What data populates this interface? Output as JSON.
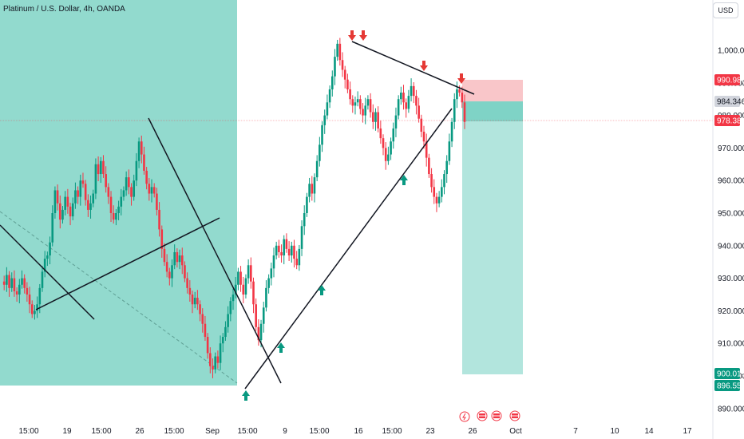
{
  "header": {
    "title": "Platinum / U.S. Dollar, 4h, OANDA",
    "currency": "USD"
  },
  "colors": {
    "up": "#089981",
    "down": "#f23645",
    "zone": "#7fd3c6",
    "tp_zone": "#b2e5dd",
    "sl_zone": "#f9c6c9",
    "entry_zone": "#7fd3c6",
    "arrow_down": "#e53935",
    "arrow_up": "#089981"
  },
  "chart_data": {
    "type": "candlestick",
    "y_axis": {
      "ticks": [
        "1,000.000",
        "990.000",
        "980.000",
        "970.000",
        "960.000",
        "950.000",
        "940.000",
        "930.000",
        "920.000",
        "910.000",
        "900.000",
        "890.000"
      ],
      "ylim": [
        887,
        1010
      ]
    },
    "x_axis": {
      "ticks": [
        "15:00",
        "19",
        "15:00",
        "26",
        "15:00",
        "Sep",
        "15:00",
        "9",
        "15:00",
        "16",
        "15:00",
        "23",
        "26",
        "Oct",
        "7",
        "10",
        "14",
        "17"
      ]
    },
    "price_tags": [
      {
        "value": "990.983",
        "kind": "stop"
      },
      {
        "value": "984.346",
        "kind": "entry"
      },
      {
        "value": "978.388",
        "kind": "last"
      },
      {
        "value": "900.018",
        "kind": "target"
      },
      {
        "value": "896.553",
        "kind": "target2"
      }
    ],
    "prices": [
      929,
      928,
      931,
      927,
      930,
      926,
      925,
      928,
      930,
      927,
      925,
      922,
      919,
      920,
      922,
      927,
      932,
      936,
      937,
      941,
      950,
      957,
      953,
      948,
      951,
      955,
      952,
      949,
      953,
      957,
      955,
      960,
      959,
      954,
      951,
      953,
      956,
      965,
      962,
      966,
      962,
      958,
      955,
      950,
      948,
      950,
      952,
      955,
      957,
      961,
      958,
      955,
      960,
      966,
      972,
      968,
      963,
      959,
      956,
      958,
      956,
      951,
      945,
      939,
      935,
      932,
      930,
      934,
      938,
      935,
      937,
      934,
      930,
      927,
      925,
      922,
      924,
      922,
      919,
      916,
      912,
      907,
      903,
      902,
      906,
      904,
      910,
      912,
      915,
      919,
      923,
      925,
      928,
      932,
      928,
      925,
      930,
      934,
      929,
      922,
      915,
      911,
      916,
      921,
      927,
      930,
      933,
      937,
      940,
      938,
      937,
      942,
      939,
      937,
      940,
      936,
      934,
      939,
      946,
      950,
      955,
      959,
      956,
      961,
      966,
      971,
      977,
      980,
      984,
      988,
      992,
      998,
      1002,
      997,
      994,
      991,
      988,
      985,
      983,
      984,
      985,
      982,
      980,
      983,
      985,
      981,
      978,
      981,
      976,
      973,
      970,
      966,
      968,
      972,
      976,
      980,
      985,
      987,
      984,
      982,
      986,
      989,
      986,
      983,
      979,
      975,
      972,
      967,
      962,
      958,
      955,
      953,
      955,
      958,
      962,
      966,
      972,
      978,
      985,
      988,
      987,
      984,
      978
    ],
    "annotations": {
      "down_arrow_count": 4,
      "up_arrow_count": 4
    }
  }
}
